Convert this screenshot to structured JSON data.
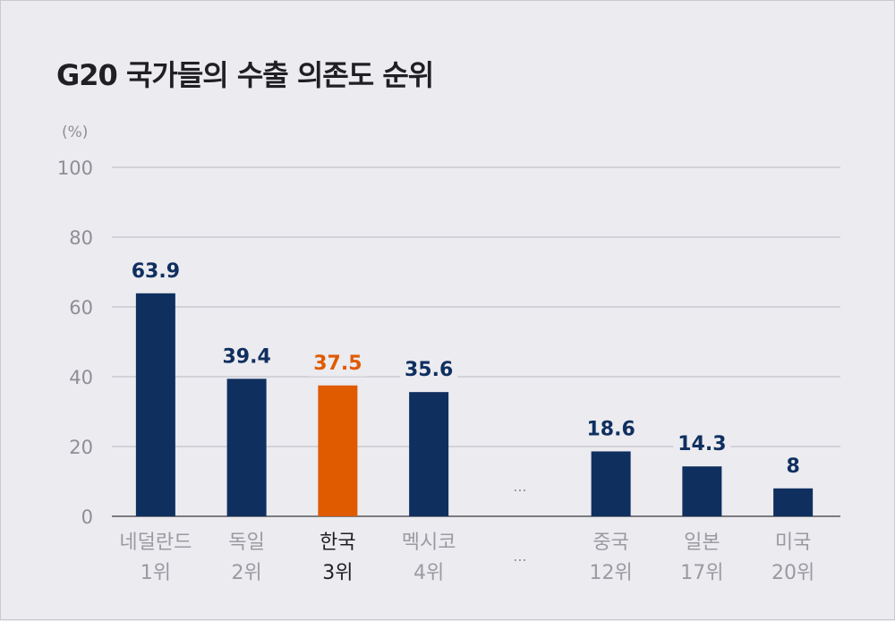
{
  "chart_data": {
    "type": "bar",
    "title": "G20 국가들의 수출 의존도 순위",
    "unit": "(%)",
    "ylim": [
      0,
      100
    ],
    "yticks": [
      0,
      20,
      40,
      60,
      80,
      100
    ],
    "grid": true,
    "categories": [
      {
        "name": "네덜란드",
        "rank": "1위",
        "value": 63.9,
        "label": "63.9",
        "highlight": false
      },
      {
        "name": "독일",
        "rank": "2위",
        "value": 39.4,
        "label": "39.4",
        "highlight": false
      },
      {
        "name": "한국",
        "rank": "3위",
        "value": 37.5,
        "label": "37.5",
        "highlight": true
      },
      {
        "name": "멕시코",
        "rank": "4위",
        "value": 35.6,
        "label": "35.6",
        "highlight": false
      },
      {
        "gap": true,
        "symbol": "..."
      },
      {
        "name": "중국",
        "rank": "12위",
        "value": 18.6,
        "label": "18.6",
        "highlight": false
      },
      {
        "name": "일본",
        "rank": "17위",
        "value": 14.3,
        "label": "14.3",
        "highlight": false
      },
      {
        "name": "미국",
        "rank": "20위",
        "value": 8,
        "label": "8",
        "highlight": false
      }
    ],
    "colors": {
      "bar": "#0f2f5f",
      "highlight": "#e05a00",
      "grid": "#b9b9bf",
      "axis": "#7a7a80"
    }
  }
}
